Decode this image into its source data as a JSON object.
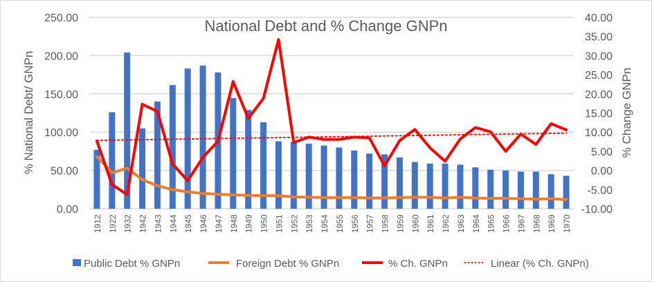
{
  "chart_data": {
    "type": "bar+line",
    "title": "National Debt and % Change GNPn",
    "ylabel": "% National Debt/ GNPn",
    "y2label": "% Change GNPn",
    "ylim": [
      0,
      250
    ],
    "y2lim": [
      -10,
      40
    ],
    "yticks": [
      "0.00",
      "50.00",
      "100.00",
      "150.00",
      "200.00",
      "250.00"
    ],
    "y2ticks": [
      "-10.00",
      "-5.00",
      "0.00",
      "5.00",
      "10.00",
      "15.00",
      "20.00",
      "25.00",
      "30.00",
      "35.00",
      "40.00"
    ],
    "grid": true,
    "legend_position": "bottom",
    "categories": [
      "1912",
      "1922",
      "1932",
      "1942",
      "1943",
      "1944",
      "1945",
      "1946",
      "1947",
      "1948",
      "1949",
      "1950",
      "1951",
      "1952",
      "1953",
      "1954",
      "1955",
      "1956",
      "1957",
      "1958",
      "1959",
      "1960",
      "1961",
      "1962",
      "1963",
      "1964",
      "1965",
      "1966",
      "1967",
      "1968",
      "1969",
      "1970"
    ],
    "series": [
      {
        "name": "Public Debt % GNPn",
        "type": "bar",
        "axis": "left",
        "color": "#4472c4",
        "values": [
          77,
          126,
          204,
          105,
          140,
          161.5,
          183,
          187,
          178,
          144.5,
          129,
          113,
          88,
          87,
          85,
          82.5,
          80,
          76,
          72,
          71,
          67,
          61,
          59,
          59,
          57.5,
          54,
          51,
          50,
          48.5,
          48.5,
          45,
          43
        ]
      },
      {
        "name": "Foreign  Debt % GNPn",
        "type": "line",
        "axis": "left",
        "color": "#ed7d31",
        "values": [
          68,
          47,
          53,
          38,
          30,
          25,
          22,
          20,
          19,
          18,
          17.5,
          17,
          17,
          15.5,
          15,
          14.5,
          14.5,
          14.5,
          14,
          14,
          14.5,
          15,
          15,
          14,
          15,
          14,
          13.5,
          13.5,
          13,
          12.5,
          13,
          12
        ]
      },
      {
        "name": "% Ch. GNPn",
        "type": "line",
        "axis": "right",
        "color": "#ff0000",
        "values": [
          7.7,
          -3.7,
          -6.3,
          17.3,
          15.4,
          1.7,
          -2.7,
          3.4,
          7.6,
          23.2,
          13.6,
          18.8,
          34.2,
          7.3,
          8.7,
          8.1,
          8.1,
          8.7,
          8.5,
          1.2,
          7.8,
          10.7,
          5.9,
          2.4,
          8.2,
          11.2,
          10.1,
          5.0,
          9.5,
          6.8,
          12.2,
          10.6
        ]
      },
      {
        "name": "Linear (% Ch. GNPn)",
        "type": "trendline",
        "axis": "right",
        "color": "#ff0000"
      }
    ]
  }
}
